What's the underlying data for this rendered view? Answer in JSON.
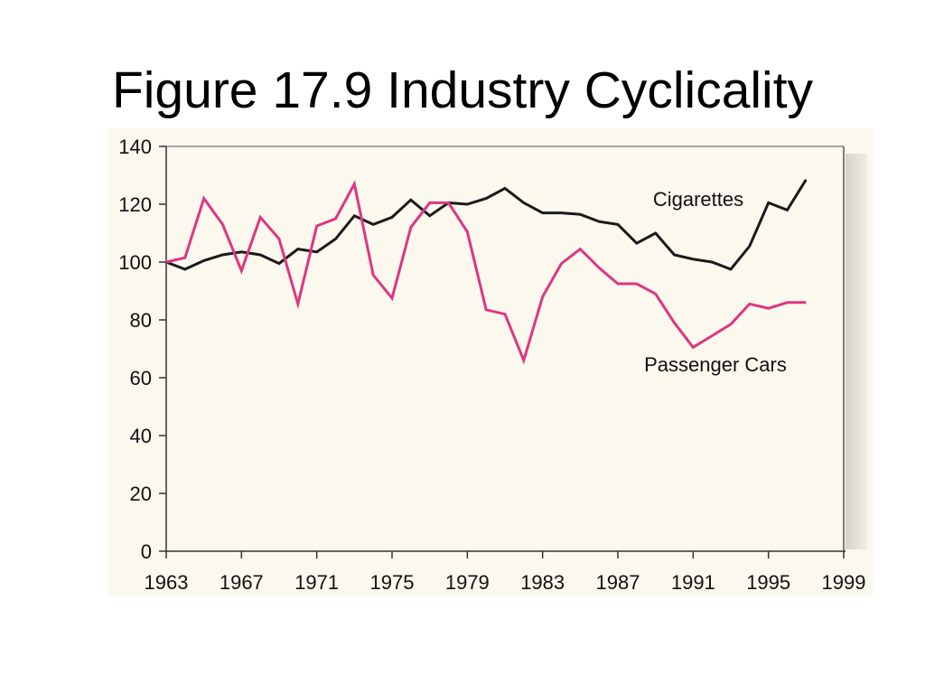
{
  "slide": {
    "title": "Figure 17.9 Industry Cyclicality"
  },
  "chart_data": {
    "type": "line",
    "title": "",
    "xlabel": "",
    "ylabel": "",
    "xlim": [
      1963,
      1999
    ],
    "ylim": [
      0,
      140
    ],
    "x_ticks": [
      "1963",
      "1967",
      "1971",
      "1975",
      "1979",
      "1983",
      "1987",
      "1991",
      "1995",
      "1999"
    ],
    "y_ticks": [
      "0",
      "20",
      "40",
      "60",
      "80",
      "100",
      "120",
      "140"
    ],
    "grid": false,
    "background_color": "#fbf8ee",
    "series": [
      {
        "name": "Cigarettes",
        "color": "#1a1a1a",
        "x": [
          1963,
          1964,
          1965,
          1966,
          1967,
          1968,
          1969,
          1970,
          1971,
          1972,
          1973,
          1974,
          1975,
          1976,
          1977,
          1978,
          1979,
          1980,
          1981,
          1982,
          1983,
          1984,
          1985,
          1986,
          1987,
          1988,
          1989,
          1990,
          1991,
          1992,
          1993,
          1994,
          1995,
          1996,
          1997
        ],
        "values": [
          100,
          97.5,
          100.5,
          102.5,
          103.5,
          102.5,
          99.5,
          104.5,
          103.5,
          108,
          116,
          113,
          115.5,
          121.5,
          116,
          120.5,
          120,
          122,
          125.5,
          120.5,
          117,
          117,
          116.5,
          114,
          113,
          106.5,
          110,
          102.5,
          101,
          100,
          97.5,
          105.5,
          120.5,
          118,
          128.5
        ]
      },
      {
        "name": "Passenger Cars",
        "color": "#e0357f",
        "x": [
          1963,
          1964,
          1965,
          1966,
          1967,
          1968,
          1969,
          1970,
          1971,
          1972,
          1973,
          1974,
          1975,
          1976,
          1977,
          1978,
          1979,
          1980,
          1981,
          1982,
          1983,
          1984,
          1985,
          1986,
          1987,
          1988,
          1989,
          1990,
          1991,
          1992,
          1993,
          1994,
          1995,
          1996,
          1997
        ],
        "values": [
          100,
          101.5,
          122,
          113,
          97,
          115.5,
          108,
          85.5,
          112.5,
          115,
          127,
          95.5,
          87.5,
          112,
          120.5,
          120.5,
          110.5,
          83.5,
          82,
          66,
          88,
          99.5,
          104.5,
          98,
          92.5,
          92.5,
          89,
          79,
          70.5,
          74.5,
          78.5,
          85.5,
          84,
          86,
          86
        ]
      }
    ]
  }
}
